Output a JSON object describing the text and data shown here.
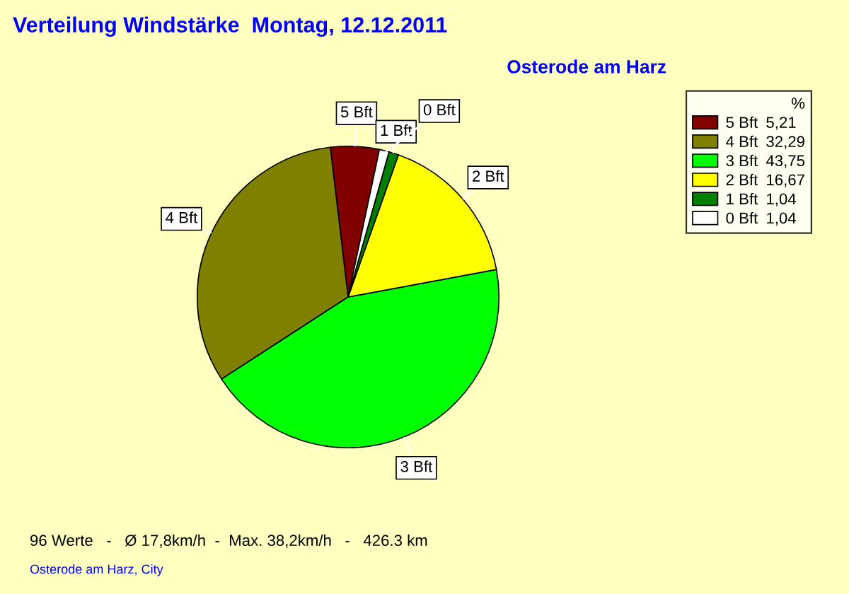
{
  "chart_data": {
    "type": "pie",
    "title": "Verteilung Windstärke  Montag, 12.12.2011",
    "subtitle": "Osterode am Harz",
    "categories": [
      "5 Bft",
      "4 Bft",
      "3 Bft",
      "2 Bft",
      "1 Bft",
      "0 Bft"
    ],
    "values": [
      5.21,
      32.29,
      43.75,
      16.67,
      1.04,
      1.04
    ],
    "value_labels": [
      "5,21",
      "32,29",
      "43,75",
      "16,67",
      "1,04",
      "1,04"
    ],
    "colors": [
      "#800000",
      "#808000",
      "#00ff00",
      "#ffff00",
      "#008000",
      "#ffffff"
    ],
    "legend": "top right",
    "legend_title": "%",
    "annotations": [
      "96 Werte   -   Ø 17,8km/h  -  Max. 38,2km/h   -   426.3 km",
      "Osterode am Harz, City"
    ]
  }
}
